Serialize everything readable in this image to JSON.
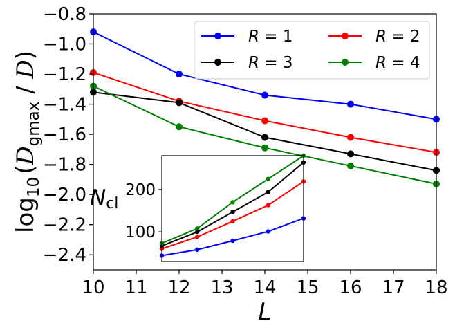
{
  "chart_data": [
    {
      "type": "line",
      "title": "",
      "xlabel": "L",
      "ylabel": "log10 (D_gmax / D)",
      "ylabel_parts": {
        "prefix": "log",
        "sub": "10",
        "open": "(",
        "numerator": "D",
        "numerator_sub": "gmax",
        "slash": " / ",
        "denominator": "D",
        "close": ")"
      },
      "x": [
        10,
        12,
        14,
        16,
        18
      ],
      "xlim": [
        10,
        18
      ],
      "ylim": [
        -2.5,
        -0.8
      ],
      "xticks": [
        10,
        11,
        12,
        13,
        14,
        15,
        16,
        17,
        18
      ],
      "yticks": [
        -2.4,
        -2.2,
        -2.0,
        -1.8,
        -1.6,
        -1.4,
        -1.2,
        -1.0,
        -0.8
      ],
      "ytick_labels": [
        "−2.4",
        "−2.2",
        "−2.0",
        "−1.8",
        "−1.6",
        "−1.4",
        "−1.2",
        "−1.0",
        "−0.8"
      ],
      "grid": false,
      "legend_position": "top-right",
      "series": [
        {
          "name": "R = 1",
          "label_var": "R",
          "label_eq": " = 1",
          "color": "#0000ff",
          "values": [
            -0.92,
            -1.2,
            -1.34,
            -1.4,
            -1.5
          ]
        },
        {
          "name": "R = 2",
          "label_var": "R",
          "label_eq": " = 2",
          "color": "#ff0000",
          "values": [
            -1.19,
            -1.38,
            -1.51,
            -1.62,
            -1.72
          ]
        },
        {
          "name": "R = 3",
          "label_var": "R",
          "label_eq": " = 3",
          "color": "#000000",
          "values": [
            -1.32,
            -1.39,
            -1.62,
            -1.73,
            -1.84
          ]
        },
        {
          "name": "R = 4",
          "label_var": "R",
          "label_eq": " = 4",
          "color": "#008000",
          "values": [
            -1.28,
            -1.55,
            -1.69,
            -1.81,
            -1.93
          ]
        }
      ]
    },
    {
      "type": "line",
      "title": "",
      "role": "inset",
      "xlabel": "",
      "ylabel": "N_cl",
      "ylabel_parts": {
        "main": "N",
        "sub": "cl"
      },
      "x": [
        10,
        12,
        14,
        16,
        18
      ],
      "xlim": [
        10,
        18
      ],
      "ylim": [
        30,
        280
      ],
      "yticks": [
        100,
        200
      ],
      "ytick_labels": [
        "100",
        "200"
      ],
      "grid": false,
      "series": [
        {
          "name": "R = 1",
          "color": "#0000ff",
          "values": [
            44,
            58,
            79,
            101,
            132
          ]
        },
        {
          "name": "R = 2",
          "color": "#ff0000",
          "values": [
            60,
            88,
            125,
            163,
            219
          ]
        },
        {
          "name": "R = 3",
          "color": "#000000",
          "values": [
            67,
            100,
            147,
            194,
            264
          ]
        },
        {
          "name": "R = 4",
          "color": "#008000",
          "values": [
            73,
            108,
            170,
            225,
            280
          ]
        }
      ]
    }
  ]
}
